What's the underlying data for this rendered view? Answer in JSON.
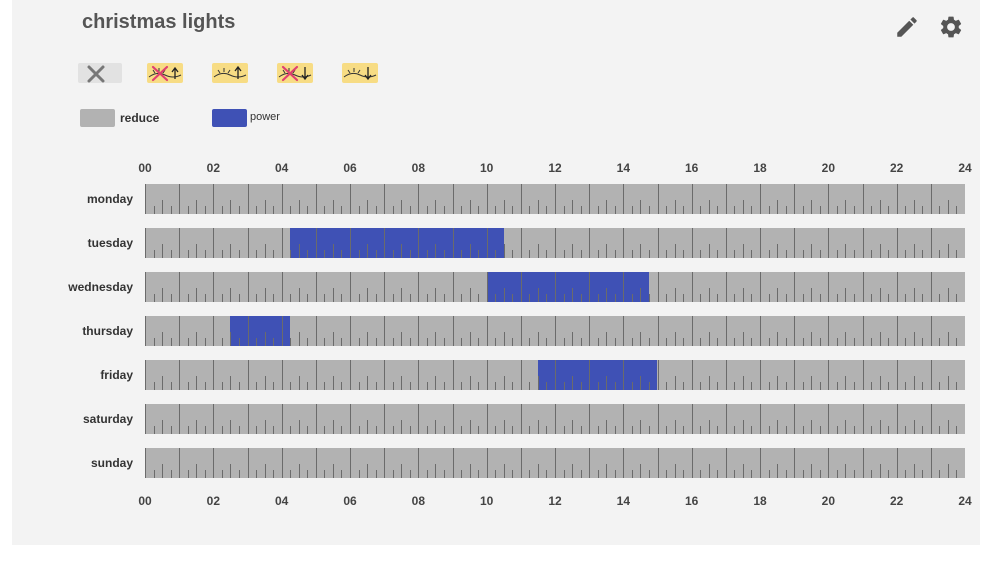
{
  "header": {
    "title": "christmas lights",
    "edit_icon": "pencil-icon",
    "settings_icon": "gear-icon"
  },
  "mode_buttons": [
    {
      "name": "off",
      "icon": "close-icon",
      "selected": true
    },
    {
      "name": "lights-off",
      "icon": "lights-crossed-icon",
      "selected": false
    },
    {
      "name": "lights-up",
      "icon": "lights-up-arrow-icon",
      "selected": false
    },
    {
      "name": "lights-off-down",
      "icon": "lights-crossed-down-icon",
      "selected": false
    },
    {
      "name": "lights-down",
      "icon": "lights-down-arrow-icon",
      "selected": false
    }
  ],
  "legend": [
    {
      "label": "reduce",
      "color": "#b2b2b2"
    },
    {
      "label": "power",
      "color": "#3f51b5"
    }
  ],
  "axis": {
    "ticks": [
      "00",
      "02",
      "04",
      "06",
      "08",
      "10",
      "12",
      "14",
      "16",
      "18",
      "20",
      "22",
      "24"
    ]
  },
  "colors": {
    "reduce": "#b2b2b2",
    "power": "#3f51b5"
  },
  "schedule": [
    {
      "day": "monday",
      "blocks": []
    },
    {
      "day": "tuesday",
      "blocks": [
        {
          "start": "04:15",
          "end": "10:30",
          "mode": "power"
        }
      ]
    },
    {
      "day": "wednesday",
      "blocks": [
        {
          "start": "10:00",
          "end": "14:45",
          "mode": "power"
        }
      ]
    },
    {
      "day": "thursday",
      "blocks": [
        {
          "start": "02:30",
          "end": "04:15",
          "mode": "power"
        }
      ]
    },
    {
      "day": "friday",
      "blocks": [
        {
          "start": "11:30",
          "end": "15:00",
          "mode": "power"
        }
      ]
    },
    {
      "day": "saturday",
      "blocks": []
    },
    {
      "day": "sunday",
      "blocks": []
    }
  ]
}
